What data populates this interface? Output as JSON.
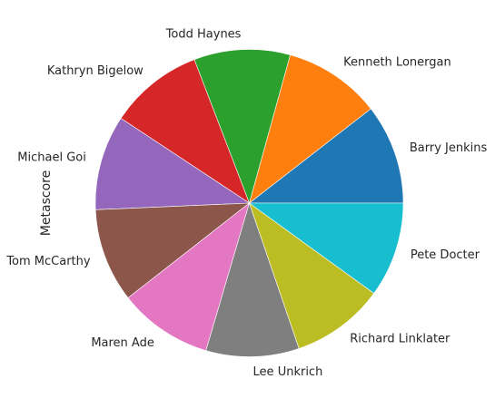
{
  "chart_data": {
    "type": "pie",
    "title": "",
    "ylabel": "Metascore",
    "categories": [
      "Barry Jenkins",
      "Kenneth Lonergan",
      "Todd Haynes",
      "Kathryn Bigelow",
      "Michael Goi",
      "Tom McCarthy",
      "Maren Ade",
      "Lee Unkrich",
      "Richard Linklater",
      "Pete Docter"
    ],
    "values": [
      99,
      96,
      95,
      93,
      94,
      93,
      93,
      92,
      92,
      94
    ],
    "colors": [
      "#1f77b4",
      "#ff7f0e",
      "#2ca02c",
      "#d62728",
      "#9467bd",
      "#8c564b",
      "#e377c2",
      "#7f7f7f",
      "#bcbd22",
      "#17becf"
    ],
    "legend": "none"
  }
}
